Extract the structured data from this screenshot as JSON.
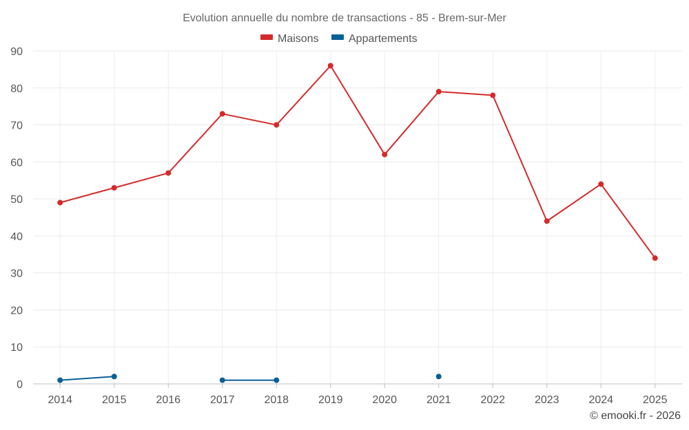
{
  "chart_data": {
    "type": "line",
    "title": "Evolution annuelle du nombre de transactions - 85 - Brem-sur-Mer",
    "categories": [
      "2014",
      "2015",
      "2016",
      "2017",
      "2018",
      "2019",
      "2020",
      "2021",
      "2022",
      "2023",
      "2024",
      "2025"
    ],
    "series": [
      {
        "name": "Maisons",
        "color": "#d42a2a",
        "values": [
          49,
          53,
          57,
          73,
          70,
          86,
          62,
          79,
          78,
          44,
          54,
          34
        ]
      },
      {
        "name": "Appartements",
        "color": "#0a5f96",
        "values": [
          1,
          2,
          null,
          1,
          1,
          null,
          null,
          2,
          null,
          null,
          null,
          null
        ]
      }
    ],
    "ylim": [
      0,
      90
    ],
    "yticks": [
      0,
      10,
      20,
      30,
      40,
      50,
      60,
      70,
      80,
      90
    ],
    "xlabel": "",
    "ylabel": "",
    "grid": true,
    "legend_position": "top-center"
  },
  "credit": "© emooki.fr - 2026"
}
